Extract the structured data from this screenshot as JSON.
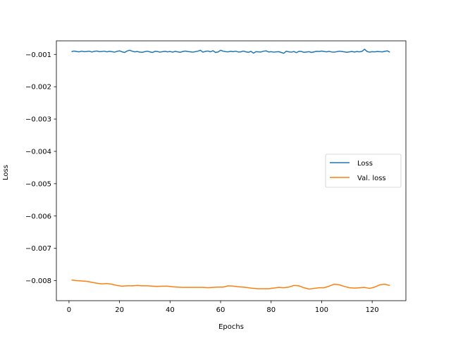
{
  "chart_data": {
    "type": "line",
    "title": "",
    "xlabel": "Epochs",
    "ylabel": "Loss",
    "xlim": [
      -5,
      133.35
    ],
    "ylim": [
      -0.00862,
      -0.00058
    ],
    "xticks": [
      0,
      20,
      40,
      60,
      80,
      100,
      120
    ],
    "yticks": [
      -0.001,
      -0.002,
      -0.003,
      -0.004,
      -0.005,
      -0.006,
      -0.007,
      -0.008
    ],
    "xtick_labels": [
      "0",
      "20",
      "40",
      "60",
      "80",
      "100",
      "120"
    ],
    "ytick_labels": [
      "−0.001",
      "−0.002",
      "−0.003",
      "−0.004",
      "−0.005",
      "−0.006",
      "−0.007",
      "−0.008"
    ],
    "legend": {
      "position": "center-right",
      "entries": [
        "Loss",
        "Val. loss"
      ]
    },
    "grid": false,
    "series": [
      {
        "name": "Loss",
        "color": "#1f77b4",
        "x": [
          1,
          2,
          3,
          4,
          5,
          6,
          7,
          8,
          9,
          10,
          11,
          12,
          13,
          14,
          15,
          16,
          17,
          18,
          19,
          20,
          21,
          22,
          23,
          24,
          25,
          26,
          27,
          28,
          29,
          30,
          31,
          32,
          33,
          34,
          35,
          36,
          37,
          38,
          39,
          40,
          41,
          42,
          43,
          44,
          45,
          46,
          47,
          48,
          49,
          50,
          51,
          52,
          53,
          54,
          55,
          56,
          57,
          58,
          59,
          60,
          61,
          62,
          63,
          64,
          65,
          66,
          67,
          68,
          69,
          70,
          71,
          72,
          73,
          74,
          75,
          76,
          77,
          78,
          79,
          80,
          81,
          82,
          83,
          84,
          85,
          86,
          87,
          88,
          89,
          90,
          91,
          92,
          93,
          94,
          95,
          96,
          97,
          98,
          99,
          100,
          101,
          102,
          103,
          104,
          105,
          106,
          107,
          108,
          109,
          110,
          111,
          112,
          113,
          114,
          115,
          116,
          117,
          118,
          119,
          120,
          121,
          122,
          123,
          124,
          125,
          126,
          127
        ],
        "y": [
          -0.000915,
          -0.000895,
          -0.00091,
          -0.00092,
          -0.0009,
          -0.000915,
          -0.00091,
          -0.0009,
          -0.000925,
          -0.000905,
          -0.000895,
          -0.000915,
          -0.00091,
          -0.0009,
          -0.00092,
          -0.000905,
          -0.000915,
          -0.00093,
          -0.000905,
          -0.00089,
          -0.00092,
          -0.00094,
          -0.000895,
          -0.00087,
          -0.0009,
          -0.00092,
          -0.00091,
          -0.00093,
          -0.000935,
          -0.000915,
          -0.0009,
          -0.00092,
          -0.00094,
          -0.000905,
          -0.00091,
          -0.00093,
          -0.000915,
          -0.000905,
          -0.00092,
          -0.00091,
          -0.00093,
          -0.000905,
          -0.00092,
          -0.000935,
          -0.00091,
          -0.000895,
          -0.00091,
          -0.00092,
          -0.00093,
          -0.000915,
          -0.0009,
          -0.00087,
          -0.00093,
          -0.000905,
          -0.000895,
          -0.00092,
          -0.000885,
          -0.00094,
          -0.000925,
          -0.00087,
          -0.0009,
          -0.000915,
          -0.00092,
          -0.000905,
          -0.000915,
          -0.0009,
          -0.000925,
          -0.00092,
          -0.000895,
          -0.00092,
          -0.000935,
          -0.000905,
          -0.00096,
          -0.000915,
          -0.00092,
          -0.000925,
          -0.0009,
          -0.00089,
          -0.000925,
          -0.000915,
          -0.00093,
          -0.00092,
          -0.000915,
          -0.00094,
          -0.000965,
          -0.0009,
          -0.00092,
          -0.00093,
          -0.00091,
          -0.000945,
          -0.000905,
          -0.00091,
          -0.000935,
          -0.000925,
          -0.000915,
          -0.00094,
          -0.00092,
          -0.000905,
          -0.00091,
          -0.000895,
          -0.00091,
          -0.00092,
          -0.000905,
          -0.000925,
          -0.00093,
          -0.000915,
          -0.0009,
          -0.00091,
          -0.00092,
          -0.000935,
          -0.00092,
          -0.00091,
          -0.000925,
          -0.00091,
          -0.00092,
          -0.000905,
          -0.00084,
          -0.00091,
          -0.00093,
          -0.000915,
          -0.00092,
          -0.00091,
          -0.000915,
          -0.00092,
          -0.000905,
          -0.00089,
          -0.00093
        ]
      },
      {
        "name": "Val. loss",
        "color": "#ff7f0e",
        "x": [
          1,
          3,
          5,
          7,
          9,
          11,
          13,
          15,
          17,
          19,
          21,
          23,
          25,
          27,
          29,
          31,
          33,
          35,
          37,
          39,
          41,
          43,
          45,
          47,
          49,
          51,
          53,
          55,
          57,
          59,
          61,
          63,
          65,
          67,
          69,
          71,
          73,
          75,
          77,
          79,
          81,
          83,
          85,
          87,
          89,
          91,
          93,
          95,
          97,
          99,
          101,
          103,
          105,
          107,
          109,
          111,
          113,
          115,
          117,
          119,
          121,
          123,
          125,
          127
        ],
        "y": [
          -0.00798,
          -0.008,
          -0.00801,
          -0.00802,
          -0.00805,
          -0.00808,
          -0.0081,
          -0.00809,
          -0.00811,
          -0.00815,
          -0.00817,
          -0.00816,
          -0.00816,
          -0.00815,
          -0.00816,
          -0.00816,
          -0.00817,
          -0.00818,
          -0.00817,
          -0.00817,
          -0.00819,
          -0.0082,
          -0.00821,
          -0.00821,
          -0.00821,
          -0.00821,
          -0.00821,
          -0.00822,
          -0.00821,
          -0.0082,
          -0.0082,
          -0.00816,
          -0.00817,
          -0.00819,
          -0.0082,
          -0.00822,
          -0.00824,
          -0.00825,
          -0.00825,
          -0.00825,
          -0.00823,
          -0.00821,
          -0.00822,
          -0.0082,
          -0.00815,
          -0.00816,
          -0.00822,
          -0.00826,
          -0.00824,
          -0.00822,
          -0.00822,
          -0.00817,
          -0.00811,
          -0.00813,
          -0.00818,
          -0.00822,
          -0.00823,
          -0.00822,
          -0.00821,
          -0.00824,
          -0.0082,
          -0.00813,
          -0.00811,
          -0.00815
        ]
      }
    ]
  }
}
